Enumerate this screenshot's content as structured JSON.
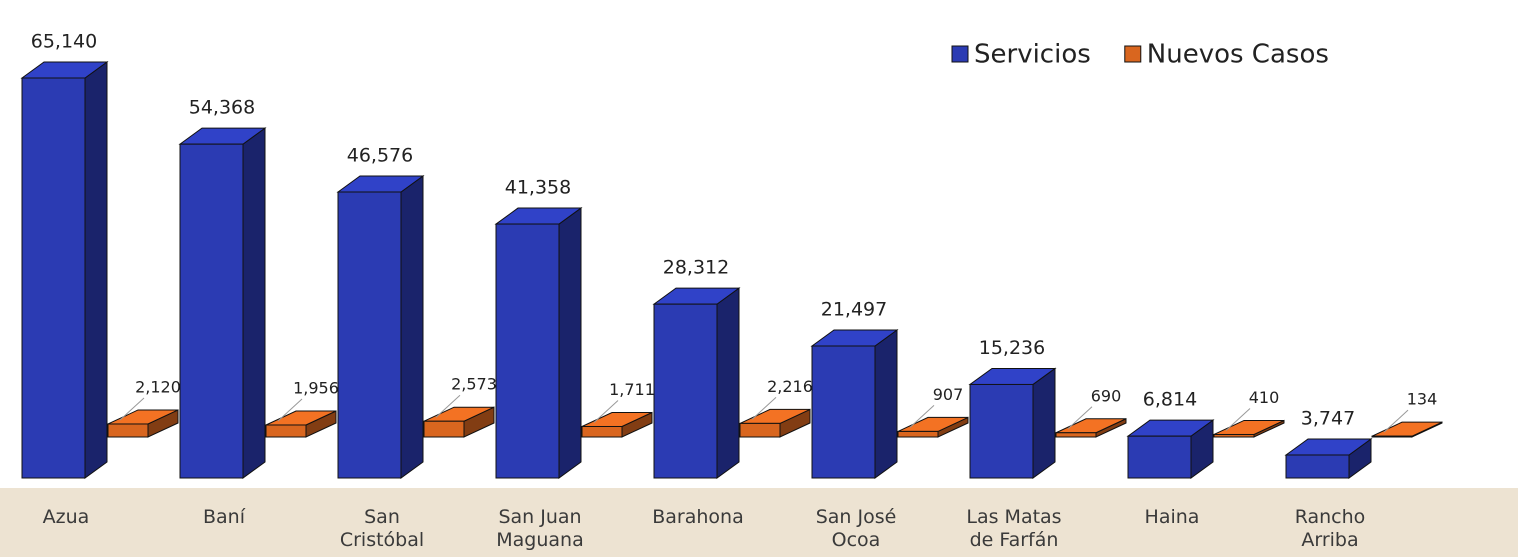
{
  "chart_data": {
    "type": "bar3d",
    "categories": [
      "Azua",
      "Baní",
      "San Cristóbal",
      "San Juan Maguana",
      "Barahona",
      "San José Ocoa",
      "Las Matas de Farfán",
      "Haina",
      "Rancho Arriba"
    ],
    "series": [
      {
        "name": "Servicios",
        "color": "#2b3bb3",
        "values": [
          65140,
          54368,
          46576,
          41358,
          28312,
          21497,
          15236,
          6814,
          3747
        ],
        "value_labels": [
          "65,140",
          "54,368",
          "46,576",
          "41,358",
          "28,312",
          "21,497",
          "15,236",
          "6,814",
          "3,747"
        ]
      },
      {
        "name": "Nuevos Casos",
        "color": "#d9661f",
        "values": [
          2120,
          1956,
          2573,
          1711,
          2216,
          907,
          690,
          410,
          134
        ],
        "value_labels": [
          "2,120",
          "1,956",
          "2,573",
          "1,711",
          "2,216",
          "907",
          "690",
          "410",
          "134"
        ]
      }
    ],
    "legend": "top-right"
  }
}
